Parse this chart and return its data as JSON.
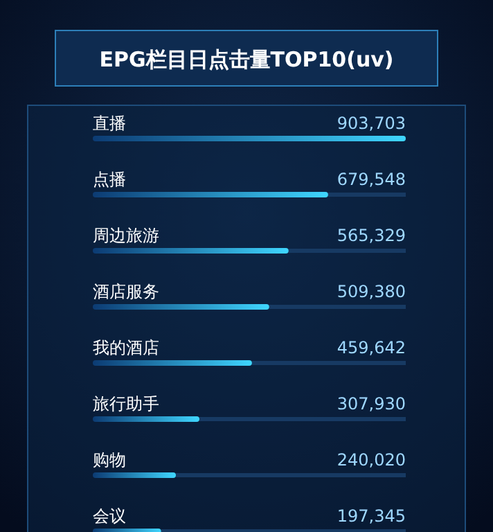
{
  "chart_data": {
    "type": "bar",
    "orientation": "horizontal",
    "title": "EPG栏目日点击量TOP10(uv)",
    "categories": [
      "直播",
      "点播",
      "周边旅游",
      "酒店服务",
      "我的酒店",
      "旅行助手",
      "购物",
      "会议"
    ],
    "values": [
      903703,
      679548,
      565329,
      509380,
      459642,
      307930,
      240020,
      197345
    ],
    "value_labels": [
      "903,703",
      "679,548",
      "565,329",
      "509,380",
      "459,642",
      "307,930",
      "240,020",
      "197,345"
    ],
    "color": "#3fd6ff"
  }
}
